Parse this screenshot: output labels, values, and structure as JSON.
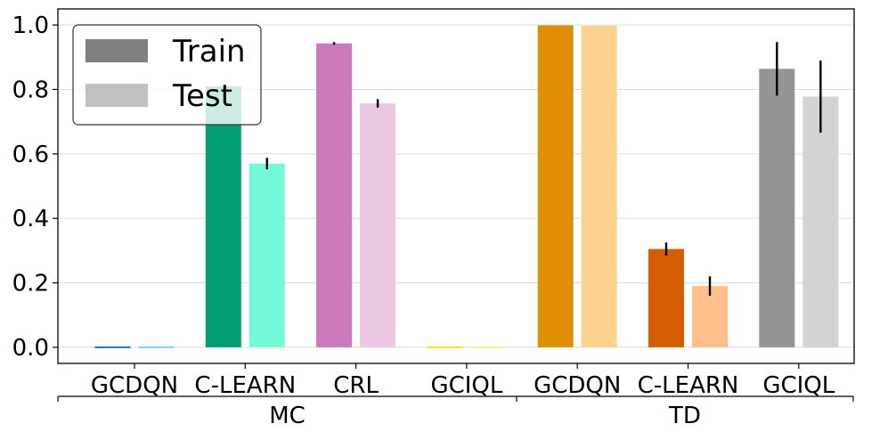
{
  "chart_data": {
    "type": "bar",
    "title": "",
    "xlabel": "",
    "ylabel": "",
    "ylim": [
      -0.05,
      1.05
    ],
    "yticks": [
      "0.0",
      "0.2",
      "0.4",
      "0.6",
      "0.8",
      "1.0"
    ],
    "grid": "horizontal",
    "legend": {
      "placement": "top-left",
      "entries": [
        {
          "label": "Train",
          "color": "#808080"
        },
        {
          "label": "Test",
          "color": "#c0c0c0"
        }
      ]
    },
    "groups": [
      {
        "label": "MC"
      },
      {
        "label": "TD"
      }
    ],
    "categories": [
      {
        "label": "GCDQN",
        "group": "MC",
        "train": 0.0,
        "train_err": 0.0,
        "test": 0.0,
        "test_err": 0.0,
        "train_color": "#1f77b4",
        "test_color": "#87ceeb"
      },
      {
        "label": "C-LEARN",
        "group": "MC",
        "train": 0.81,
        "train_err": 0.0,
        "test": 0.57,
        "test_err": 0.018,
        "train_color": "#029e73",
        "test_color": "#74f9d8"
      },
      {
        "label": "CRL",
        "group": "MC",
        "train": 0.943,
        "train_err": 0.004,
        "test": 0.757,
        "test_err": 0.013,
        "train_color": "#cc78bc",
        "test_color": "#ebc9e4"
      },
      {
        "label": "GCIQL",
        "group": "MC",
        "train": 0.0,
        "train_err": 0.0,
        "test": 0.0,
        "test_err": 0.0,
        "train_color": "#e8e820",
        "test_color": "#f5f5a0"
      },
      {
        "label": "GCDQN",
        "group": "TD",
        "train": 0.999,
        "train_err": 0.0,
        "test": 0.998,
        "test_err": 0.0,
        "train_color": "#de8f05",
        "test_color": "#fcd490"
      },
      {
        "label": "C-LEARN",
        "group": "TD",
        "train": 0.305,
        "train_err": 0.02,
        "test": 0.19,
        "test_err": 0.03,
        "train_color": "#d55e00",
        "test_color": "#ffbf8a"
      },
      {
        "label": "GCIQL",
        "group": "TD",
        "train": 0.864,
        "train_err": 0.083,
        "test": 0.778,
        "test_err": 0.112,
        "train_color": "#949494",
        "test_color": "#d4d4d4"
      }
    ]
  }
}
